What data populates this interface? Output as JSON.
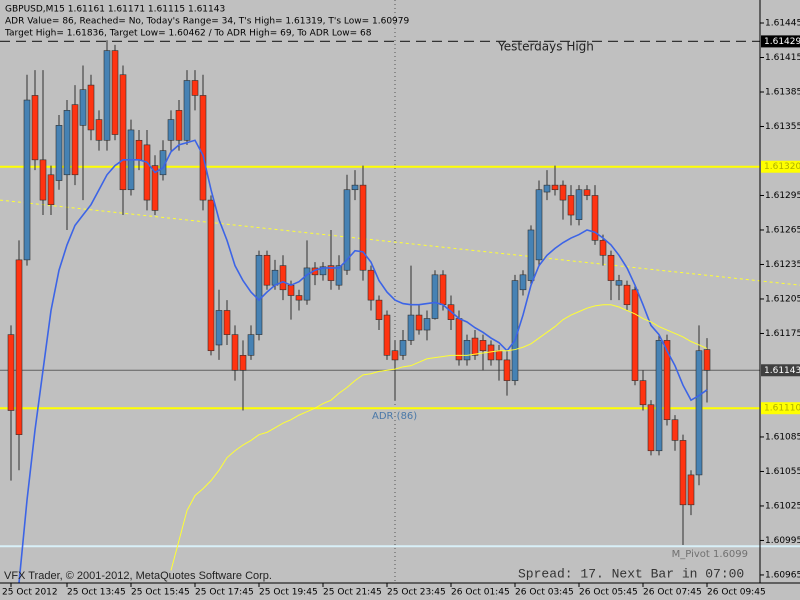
{
  "chart_data": {
    "type": "candlestick",
    "info_lines": [
      "GBPUSD,M15  1.61161 1.61171 1.61115 1.61143",
      "ADR Value= 86, Reached= No, Today's Range= 34, T's High= 1.61319, T's Low= 1.60979",
      "Target High= 1.61836, Target Low= 1.60462 / To ADR High= 69, To ADR Low= 68"
    ],
    "categories": [
      "25 Oct 2012",
      null,
      null,
      null,
      null,
      null,
      null,
      "25 Oct 13:45",
      null,
      null,
      null,
      null,
      null,
      null,
      null,
      "25 Oct 15:45",
      null,
      null,
      null,
      null,
      null,
      null,
      null,
      "25 Oct 17:45",
      null,
      null,
      null,
      null,
      null,
      null,
      null,
      "25 Oct 19:45",
      null,
      null,
      null,
      null,
      null,
      null,
      null,
      "25 Oct 21:45",
      null,
      null,
      null,
      null,
      null,
      null,
      null,
      "25 Oct 23:45",
      null,
      null,
      null,
      null,
      null,
      null,
      null,
      "26 Oct 01:45",
      null,
      null,
      null,
      null,
      null,
      null,
      null,
      "26 Oct 03:45",
      null,
      null,
      null,
      null,
      null,
      null,
      null,
      "26 Oct 05:45",
      null,
      null,
      null,
      null,
      null,
      null,
      null,
      "26 Oct 07:45",
      null,
      null,
      null,
      null,
      null,
      null,
      null,
      "26 Oct 09:45"
    ],
    "open": [
      1.61174,
      1.61239,
      1.61239,
      1.61382,
      1.61326,
      1.61313,
      1.61308,
      1.61313,
      1.61374,
      1.61356,
      1.61391,
      1.61361,
      1.61343,
      1.61421,
      1.614,
      1.613,
      1.61343,
      1.61339,
      1.61321,
      1.61313,
      1.61343,
      1.61369,
      1.61343,
      1.61395,
      1.61382,
      1.61291,
      1.61165,
      1.61195,
      1.61174,
      1.61156,
      1.61156,
      1.61174,
      1.61243,
      1.61217,
      1.61234,
      1.61217,
      1.61208,
      1.61204,
      1.61232,
      1.61226,
      1.61234,
      1.61217,
      1.6123,
      1.613,
      1.61304,
      1.6123,
      1.61204,
      1.61191,
      1.6116,
      1.61156,
      1.61169,
      1.61191,
      1.61178,
      1.61188,
      1.61226,
      1.612,
      1.61188,
      1.61152,
      1.61171,
      1.61169,
      1.61165,
      1.6116,
      1.61152,
      1.61134,
      1.61213,
      1.61221,
      1.61239,
      1.61298,
      1.61304,
      1.61304,
      1.61295,
      1.61274,
      1.613,
      1.61295,
      1.61256,
      1.61243,
      1.61217,
      1.61217,
      1.61213,
      1.61134,
      1.61113,
      1.61073,
      1.61169,
      1.611,
      1.61082,
      1.61052,
      1.61052,
      1.61161
    ],
    "high": [
      1.61182,
      1.61256,
      1.614,
      1.61404,
      1.61404,
      1.61321,
      1.61365,
      1.61378,
      1.61391,
      1.61408,
      1.614,
      1.61369,
      1.6143,
      1.61426,
      1.61408,
      1.61361,
      1.61352,
      1.61352,
      1.6133,
      1.61343,
      1.61369,
      1.61378,
      1.61404,
      1.61404,
      1.614,
      1.61295,
      1.61213,
      1.61204,
      1.61182,
      1.61169,
      1.61182,
      1.61247,
      1.61247,
      1.61239,
      1.61243,
      1.61221,
      1.61213,
      1.61256,
      1.61237,
      1.61237,
      1.61265,
      1.61243,
      1.61313,
      1.61317,
      1.61321,
      1.61234,
      1.61208,
      1.61195,
      1.61169,
      1.61178,
      1.61234,
      1.612,
      1.61195,
      1.6123,
      1.6123,
      1.61208,
      1.61195,
      1.61174,
      1.61178,
      1.61174,
      1.61169,
      1.61165,
      1.6116,
      1.61226,
      1.6123,
      1.61269,
      1.61308,
      1.61317,
      1.61321,
      1.61308,
      1.61304,
      1.61304,
      1.61304,
      1.61304,
      1.61261,
      1.61247,
      1.61226,
      1.61221,
      1.61217,
      1.61143,
      1.61117,
      1.61174,
      1.61174,
      1.61104,
      1.61087,
      1.61056,
      1.61182,
      1.61171
    ],
    "low": [
      1.61047,
      1.61056,
      1.61234,
      1.61317,
      1.61278,
      1.61278,
      1.613,
      1.61265,
      1.61304,
      1.61291,
      1.61343,
      1.61334,
      1.61334,
      1.61343,
      1.61278,
      1.61295,
      1.61317,
      1.61282,
      1.61278,
      1.61308,
      1.61334,
      1.61334,
      1.61339,
      1.61369,
      1.61282,
      1.61156,
      1.61152,
      1.61165,
      1.61134,
      1.61108,
      1.61152,
      1.61169,
      1.61213,
      1.61213,
      1.61204,
      1.61187,
      1.61195,
      1.612,
      1.61217,
      1.61221,
      1.61213,
      1.61213,
      1.61226,
      1.61291,
      1.61221,
      1.61195,
      1.61178,
      1.61152,
      1.61117,
      1.61152,
      1.61165,
      1.61174,
      1.61169,
      1.61187,
      1.61195,
      1.61178,
      1.61147,
      1.61147,
      1.61152,
      1.61143,
      1.61147,
      1.61134,
      1.61121,
      1.6113,
      1.61208,
      1.61217,
      1.61234,
      1.61291,
      1.61295,
      1.61274,
      1.61269,
      1.61269,
      1.61291,
      1.61252,
      1.61234,
      1.61204,
      1.61204,
      1.61195,
      1.6113,
      1.61108,
      1.61069,
      1.61069,
      1.61095,
      1.61073,
      1.60991,
      1.61017,
      1.61043,
      1.61115
    ],
    "close": [
      1.61108,
      1.61087,
      1.61378,
      1.61326,
      1.61291,
      1.61287,
      1.61356,
      1.61369,
      1.61313,
      1.61387,
      1.61352,
      1.61343,
      1.61421,
      1.61348,
      1.613,
      1.61352,
      1.61326,
      1.61291,
      1.61282,
      1.61334,
      1.61361,
      1.61343,
      1.61395,
      1.61382,
      1.61291,
      1.6116,
      1.61195,
      1.61174,
      1.61143,
      1.61143,
      1.61174,
      1.61243,
      1.61217,
      1.6123,
      1.61213,
      1.61208,
      1.61204,
      1.61232,
      1.61226,
      1.61233,
      1.61221,
      1.61234,
      1.613,
      1.61304,
      1.6123,
      1.61204,
      1.61187,
      1.61156,
      1.61152,
      1.61169,
      1.61191,
      1.61178,
      1.61188,
      1.61226,
      1.612,
      1.61187,
      1.61152,
      1.61169,
      1.61156,
      1.6116,
      1.61152,
      1.61152,
      1.61134,
      1.61221,
      1.61226,
      1.61265,
      1.613,
      1.61304,
      1.613,
      1.61291,
      1.61278,
      1.613,
      1.61295,
      1.61256,
      1.61243,
      1.61221,
      1.61221,
      1.612,
      1.61134,
      1.61113,
      1.61073,
      1.61169,
      1.611,
      1.61082,
      1.61026,
      1.61026,
      1.6116,
      1.61143
    ],
    "up_color": "#4682b4",
    "down_color": "#ff3311",
    "moving_averages": [
      {
        "color": "#3c64e6",
        "values": [
          null,
          1.60958,
          1.6103,
          1.61091,
          1.61143,
          1.61195,
          1.6123,
          1.61252,
          1.61269,
          1.61278,
          1.61287,
          1.613,
          1.61313,
          1.61321,
          1.61326,
          1.61326,
          1.61326,
          1.61324,
          1.61315,
          1.61319,
          1.61333,
          1.61339,
          1.61341,
          1.61343,
          1.6133,
          1.613,
          1.61274,
          1.61256,
          1.61234,
          1.61221,
          1.61211,
          1.61204,
          1.61211,
          1.61217,
          1.6122,
          1.61217,
          1.6122,
          1.61226,
          1.6123,
          1.61232,
          1.61232,
          1.61232,
          1.61239,
          1.61247,
          1.61246,
          1.61237,
          1.61221,
          1.61211,
          1.61204,
          1.61201,
          1.612,
          1.612,
          1.61201,
          1.61202,
          1.612,
          1.61194,
          1.61188,
          1.61185,
          1.6118,
          1.61176,
          1.61171,
          1.61167,
          1.6116,
          1.61169,
          1.61191,
          1.61217,
          1.61234,
          1.61243,
          1.61249,
          1.61254,
          1.61258,
          1.61261,
          1.61265,
          1.61263,
          1.61258,
          1.61252,
          1.61243,
          1.61232,
          1.61217,
          1.612,
          1.61182,
          1.61174,
          1.6116,
          1.61147,
          1.6113,
          1.61117,
          1.61121,
          1.61126
        ]
      },
      {
        "color": "#ffff33",
        "values": [
          null,
          null,
          null,
          null,
          null,
          null,
          null,
          null,
          null,
          null,
          null,
          null,
          null,
          null,
          null,
          null,
          null,
          null,
          null,
          null,
          1.60969,
          1.60995,
          1.61021,
          1.61034,
          1.6104,
          1.61047,
          1.61056,
          1.61067,
          1.61073,
          1.61078,
          1.61082,
          1.61087,
          1.61089,
          1.61093,
          1.61097,
          1.611,
          1.61104,
          1.61107,
          1.6111,
          1.61114,
          1.61117,
          1.61123,
          1.61128,
          1.61134,
          1.61139,
          1.6114,
          1.61142,
          1.61143,
          1.61144,
          1.61146,
          1.61147,
          1.6115,
          1.61153,
          1.61154,
          1.61155,
          1.61156,
          1.61156,
          1.61156,
          1.61157,
          1.61158,
          1.61159,
          1.6116,
          1.6116,
          1.61161,
          1.61163,
          1.61166,
          1.61171,
          1.61176,
          1.61181,
          1.61187,
          1.61191,
          1.61194,
          1.61197,
          1.61199,
          1.612,
          1.612,
          1.61198,
          1.61195,
          1.61192,
          1.61188,
          1.61185,
          1.61181,
          1.61178,
          1.61175,
          1.61172,
          1.61168,
          1.61165,
          1.61162
        ]
      }
    ],
    "trendline": {
      "values": [
        1.61291,
        1.61217
      ],
      "color": "#ffff33"
    },
    "levels": [
      {
        "value": 1.61429,
        "color": "#333333",
        "style": "dashed",
        "box": "#000000",
        "box_text": "#ffffff"
      },
      {
        "value": 1.6132,
        "label": "1.61320",
        "color": "#ffff00",
        "style": "solid",
        "box": "#ffff00",
        "box_text": "#b0b000"
      },
      {
        "value": 1.61143,
        "color": "#606060",
        "style": "thin",
        "box": "#404040",
        "box_text": "#ffffff"
      },
      {
        "value": 1.6111,
        "label": "1.61110",
        "color": "#ffff00",
        "style": "solid",
        "box": "#ffff00",
        "box_text": "#b0b000"
      }
    ],
    "pivot": {
      "value": 1.6099,
      "label": "M_Pivot 1.6099",
      "color": "#d8f0f8"
    },
    "annotations": {
      "yesterdays_high": "Yesterdays High",
      "adr": "ADR (86)"
    },
    "ylim": [
      1.60958,
      1.61465
    ],
    "yticks": [
      1.61445,
      1.61415,
      1.61385,
      1.61355,
      1.61295,
      1.61265,
      1.61235,
      1.61205,
      1.61175,
      1.61085,
      1.61055,
      1.61025,
      1.60995,
      1.60965
    ],
    "copyright": "VFX Trader, © 2001-2012, MetaQuotes Software Corp.",
    "spread_info": "Spread: 17. Next Bar in 07:00"
  }
}
